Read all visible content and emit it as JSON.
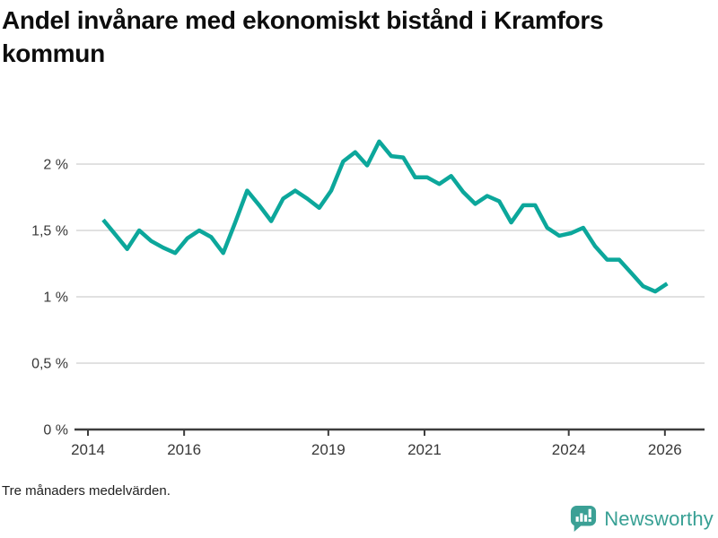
{
  "header": {
    "title": "Andel invånare med ekonomiskt bistånd i Kramfors kommun"
  },
  "footer": {
    "note": "Tre månaders medelvärden."
  },
  "branding": {
    "name": "Newsworthy",
    "icon": "newsworthy-bar-chart-bubble-icon",
    "color": "#38A094"
  },
  "colors": {
    "line": "#0CA79B",
    "grid": "#E1E1E1",
    "axis": "#3D3D3D",
    "tick_text": "#383838",
    "title_text": "#0D0D0D"
  },
  "chart_data": {
    "type": "line",
    "title": "Andel invånare med ekonomiskt bistånd i Kramfors kommun",
    "subtitle_note": "Tre månaders medelvärden.",
    "unit": "%",
    "grid": "horizontal",
    "legend": "none",
    "ylim": [
      0,
      2.25
    ],
    "xlim_years": [
      2014,
      2026.4
    ],
    "x_labels": [
      "2014-Q2",
      "2014-Q3",
      "2014-Q4",
      "2015-Q1",
      "2015-Q2",
      "2015-Q3",
      "2015-Q4",
      "2016-Q1",
      "2016-Q2",
      "2016-Q3",
      "2016-Q4",
      "2017-Q1",
      "2017-Q2",
      "2017-Q3",
      "2017-Q4",
      "2018-Q1",
      "2018-Q2",
      "2018-Q3",
      "2018-Q4",
      "2019-Q1",
      "2019-Q2",
      "2019-Q3",
      "2019-Q4",
      "2020-Q1",
      "2020-Q2",
      "2020-Q3",
      "2020-Q4",
      "2021-Q1",
      "2021-Q2",
      "2021-Q3",
      "2021-Q4",
      "2022-Q1",
      "2022-Q2",
      "2022-Q3",
      "2022-Q4",
      "2023-Q1",
      "2023-Q2",
      "2023-Q3",
      "2023-Q4",
      "2024-Q1",
      "2024-Q2",
      "2024-Q3",
      "2024-Q4",
      "2025-Q1",
      "2025-Q2",
      "2025-Q3",
      "2025-Q4",
      "2026-Q1"
    ],
    "values": [
      1.58,
      1.47,
      1.36,
      1.5,
      1.42,
      1.37,
      1.33,
      1.44,
      1.5,
      1.45,
      1.33,
      1.56,
      1.8,
      1.69,
      1.57,
      1.74,
      1.8,
      1.74,
      1.67,
      1.8,
      2.02,
      2.09,
      1.99,
      2.17,
      2.06,
      2.05,
      1.9,
      1.9,
      1.85,
      1.91,
      1.79,
      1.7,
      1.76,
      1.72,
      1.56,
      1.69,
      1.69,
      1.52,
      1.46,
      1.48,
      1.52,
      1.38,
      1.28,
      1.28,
      1.18,
      1.08,
      1.04,
      1.1
    ],
    "yticks": [
      {
        "label": "0 %",
        "value": 0
      },
      {
        "label": "0,5 %",
        "value": 0.5
      },
      {
        "label": "1 %",
        "value": 1
      },
      {
        "label": "1,5 %",
        "value": 1.5
      },
      {
        "label": "2 %",
        "value": 2
      }
    ],
    "xticks": [
      {
        "label": "2014",
        "year": 2014
      },
      {
        "label": "2016",
        "year": 2016
      },
      {
        "label": "2019",
        "year": 2019
      },
      {
        "label": "2021",
        "year": 2021
      },
      {
        "label": "2024",
        "year": 2024
      },
      {
        "label": "2026",
        "year": 2026
      }
    ]
  }
}
